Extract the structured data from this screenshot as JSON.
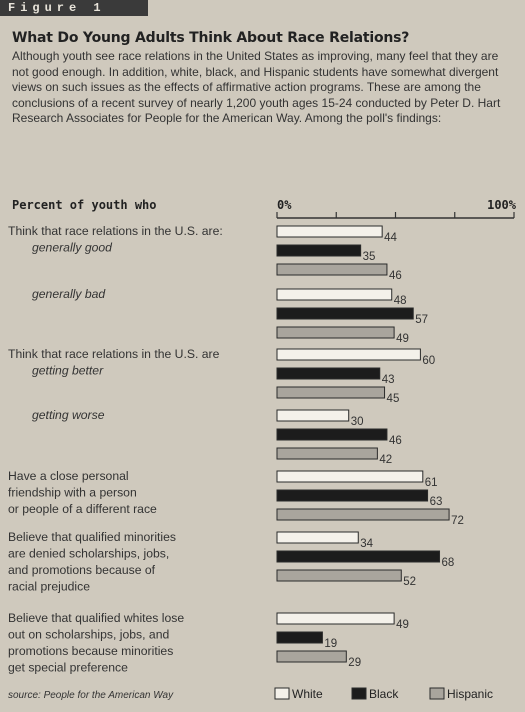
{
  "figure_tag": "Figure 1",
  "headline": "What Do Young Adults Think About Race Relations?",
  "intro": "Although youth see race relations in the United States as improving, many feel that they are not good enough. In addition, white, black, and Hispanic students have somewhat divergent views on such issues as the effects of affirmative action programs. These are among the conclusions of a recent survey of nearly 1,200 youth ages 15-24 conducted by Peter D. Hart Research Associates for People for the American Way. Among the poll's findings:",
  "colors": {
    "White": "#f4f1ea",
    "Black": "#1c1c1c",
    "Hispanic": "#a9a59d",
    "outline": "#2a2a2a"
  },
  "chart_data": {
    "type": "bar",
    "orientation": "horizontal",
    "title": "Percent of youth who",
    "xlim": [
      0,
      100
    ],
    "axis_labels": [
      "0%",
      "100%"
    ],
    "series_names": [
      "White",
      "Black",
      "Hispanic"
    ],
    "groups": [
      {
        "question": [
          "Think that race relations in the U.S. are:"
        ],
        "sub": "generally good",
        "values": [
          44,
          35,
          46
        ]
      },
      {
        "question": [],
        "sub": "generally bad",
        "values": [
          48,
          57,
          49
        ]
      },
      {
        "question": [
          "Think that race relations in the U.S. are"
        ],
        "sub": "getting better",
        "values": [
          60,
          43,
          45
        ]
      },
      {
        "question": [],
        "sub": "getting worse",
        "values": [
          30,
          46,
          42
        ]
      },
      {
        "question": [
          "Have a close personal",
          "friendship with a person",
          "or people of a different race"
        ],
        "sub": "",
        "values": [
          61,
          63,
          72
        ]
      },
      {
        "question": [
          "Believe that qualified minorities",
          "are denied scholarships, jobs,",
          "and promotions because of",
          "racial prejudice"
        ],
        "sub": "",
        "values": [
          34,
          68,
          52
        ]
      },
      {
        "question": [
          "Believe that qualified whites lose",
          "out on scholarships, jobs, and",
          "promotions because minorities",
          "get special preference"
        ],
        "sub": "",
        "values": [
          49,
          19,
          29
        ]
      }
    ],
    "source": "source: People for the American Way"
  }
}
